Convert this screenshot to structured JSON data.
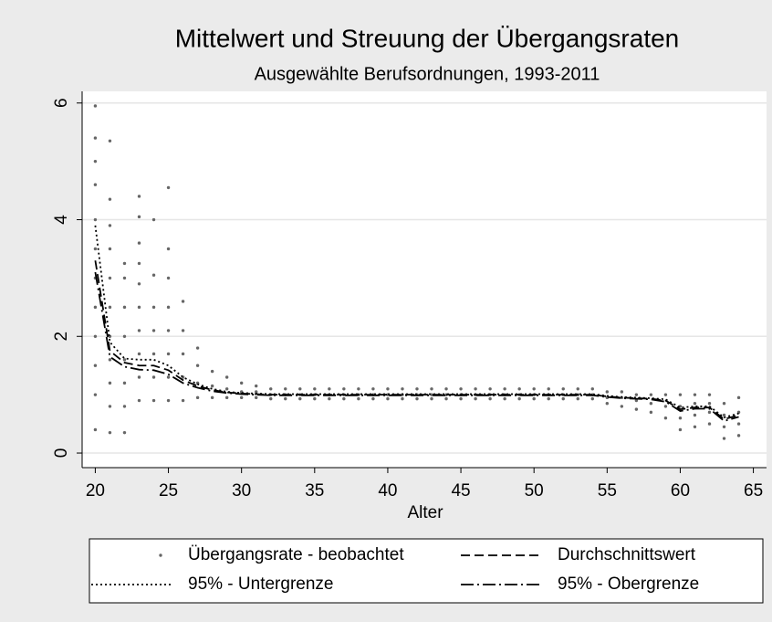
{
  "chart_data": {
    "type": "scatter",
    "title": "Mittelwert und Streuung der Übergangsraten",
    "subtitle": "Ausgewählte Berufsordnungen, 1993-2011",
    "xlabel": "Alter",
    "xlim": [
      19.1,
      65.9
    ],
    "xticks": [
      20,
      25,
      30,
      35,
      40,
      45,
      50,
      55,
      60,
      65
    ],
    "ylim": [
      -0.25,
      6.2
    ],
    "yticks": [
      0,
      2,
      4,
      6
    ],
    "grid": true,
    "series": [
      {
        "name": "Übergangsrate - beobachtet",
        "kind": "points",
        "color": "#666666",
        "x": [
          20,
          20,
          20,
          20,
          20,
          20,
          20,
          20,
          20,
          20,
          20,
          20,
          21,
          21,
          21,
          21,
          21,
          21,
          21,
          21,
          21,
          21,
          21,
          22,
          22,
          22,
          22,
          22,
          22,
          22,
          22,
          23,
          23,
          23,
          23,
          23,
          23,
          23,
          23,
          23,
          23,
          24,
          24,
          24,
          24,
          24,
          24,
          24,
          25,
          25,
          25,
          25,
          25,
          25,
          25,
          25,
          26,
          26,
          26,
          26,
          26,
          27,
          27,
          27,
          27,
          28,
          28,
          28,
          29,
          29,
          29,
          30,
          30,
          30,
          31,
          31,
          31,
          32,
          32,
          32,
          33,
          33,
          33,
          34,
          34,
          34,
          35,
          35,
          35,
          36,
          36,
          36,
          37,
          37,
          37,
          38,
          38,
          38,
          39,
          39,
          39,
          40,
          40,
          40,
          41,
          41,
          41,
          42,
          42,
          42,
          43,
          43,
          43,
          44,
          44,
          44,
          45,
          45,
          45,
          46,
          46,
          46,
          47,
          47,
          47,
          48,
          48,
          48,
          49,
          49,
          49,
          50,
          50,
          50,
          51,
          51,
          51,
          52,
          52,
          52,
          53,
          53,
          53,
          54,
          54,
          54,
          55,
          55,
          55,
          56,
          56,
          56,
          57,
          57,
          57,
          58,
          58,
          58,
          59,
          59,
          59,
          60,
          60,
          60,
          60,
          61,
          61,
          61,
          61,
          62,
          62,
          62,
          62,
          63,
          63,
          63,
          63,
          64,
          64,
          64,
          64
        ],
        "values": [
          0.4,
          1.0,
          1.5,
          2.0,
          2.5,
          3.0,
          3.5,
          4.0,
          4.6,
          5.0,
          5.4,
          5.95,
          0.35,
          0.8,
          1.2,
          1.6,
          2.0,
          2.5,
          3.0,
          3.5,
          3.9,
          4.35,
          5.35,
          0.35,
          0.8,
          1.2,
          1.6,
          2.0,
          2.5,
          3.0,
          3.25,
          0.9,
          1.3,
          1.7,
          2.1,
          2.5,
          2.9,
          3.25,
          3.6,
          4.05,
          4.4,
          0.9,
          1.3,
          1.7,
          2.1,
          2.5,
          3.05,
          4.0,
          0.9,
          1.3,
          1.7,
          2.1,
          2.5,
          3.0,
          3.5,
          4.55,
          0.9,
          1.3,
          1.7,
          2.1,
          2.6,
          0.95,
          1.2,
          1.5,
          1.8,
          0.95,
          1.15,
          1.4,
          0.95,
          1.1,
          1.3,
          0.95,
          1.05,
          1.2,
          0.95,
          1.05,
          1.15,
          0.93,
          1.0,
          1.1,
          0.93,
          1.0,
          1.1,
          0.93,
          1.0,
          1.1,
          0.93,
          1.0,
          1.1,
          0.93,
          1.0,
          1.1,
          0.93,
          1.0,
          1.1,
          0.93,
          1.0,
          1.1,
          0.93,
          1.0,
          1.1,
          0.93,
          1.0,
          1.1,
          0.93,
          1.0,
          1.1,
          0.93,
          1.0,
          1.1,
          0.93,
          1.0,
          1.1,
          0.93,
          1.0,
          1.1,
          0.93,
          1.0,
          1.1,
          0.93,
          1.0,
          1.1,
          0.93,
          1.0,
          1.1,
          0.93,
          1.0,
          1.1,
          0.93,
          1.0,
          1.1,
          0.93,
          1.0,
          1.1,
          0.93,
          1.0,
          1.1,
          0.93,
          1.0,
          1.1,
          0.93,
          1.0,
          1.1,
          0.93,
          1.0,
          1.1,
          0.85,
          0.95,
          1.05,
          0.8,
          0.95,
          1.05,
          0.75,
          0.9,
          1.0,
          0.7,
          0.85,
          1.0,
          0.6,
          0.8,
          1.0,
          0.4,
          0.6,
          0.8,
          1.0,
          0.45,
          0.65,
          0.85,
          1.0,
          0.5,
          0.7,
          0.85,
          1.0,
          0.25,
          0.45,
          0.65,
          0.85,
          0.3,
          0.5,
          0.7,
          0.95
        ]
      },
      {
        "name": "Durchschnittswert",
        "kind": "line",
        "style": "dash",
        "color": "#000000",
        "x": [
          20,
          21,
          22,
          23,
          24,
          25,
          26,
          27,
          28,
          29,
          30,
          31,
          32,
          33,
          34,
          35,
          36,
          37,
          38,
          39,
          40,
          41,
          42,
          43,
          44,
          45,
          46,
          47,
          48,
          49,
          50,
          51,
          52,
          53,
          54,
          55,
          56,
          57,
          58,
          59,
          60,
          61,
          62,
          63,
          64
        ],
        "values": [
          3.3,
          1.75,
          1.55,
          1.5,
          1.5,
          1.42,
          1.25,
          1.15,
          1.08,
          1.04,
          1.02,
          1.01,
          1.0,
          1.0,
          1.0,
          1.0,
          1.0,
          1.0,
          1.0,
          1.0,
          1.0,
          1.0,
          1.0,
          1.0,
          1.0,
          1.0,
          1.0,
          1.0,
          1.0,
          1.0,
          1.0,
          1.0,
          1.0,
          1.0,
          1.0,
          0.97,
          0.95,
          0.94,
          0.93,
          0.9,
          0.75,
          0.78,
          0.78,
          0.58,
          0.65
        ]
      },
      {
        "name": "95% - Untergrenze",
        "kind": "line",
        "style": "dot",
        "color": "#000000",
        "x": [
          20,
          21,
          22,
          23,
          24,
          25,
          26,
          27,
          28,
          29,
          30,
          31,
          32,
          33,
          34,
          35,
          36,
          37,
          38,
          39,
          40,
          41,
          42,
          43,
          44,
          45,
          46,
          47,
          48,
          49,
          50,
          51,
          52,
          53,
          54,
          55,
          56,
          57,
          58,
          59,
          60,
          61,
          62,
          63,
          64
        ],
        "values": [
          3.9,
          1.9,
          1.62,
          1.6,
          1.6,
          1.5,
          1.3,
          1.18,
          1.1,
          1.05,
          1.03,
          1.02,
          1.01,
          1.01,
          1.01,
          1.01,
          1.01,
          1.01,
          1.01,
          1.01,
          1.01,
          1.01,
          1.01,
          1.01,
          1.01,
          1.01,
          1.01,
          1.01,
          1.01,
          1.01,
          1.01,
          1.01,
          1.01,
          1.01,
          1.01,
          0.98,
          0.96,
          0.95,
          0.94,
          0.92,
          0.78,
          0.8,
          0.8,
          0.61,
          0.68
        ]
      },
      {
        "name": "95% - Obergrenze",
        "kind": "line",
        "style": "dashdot",
        "color": "#000000",
        "x": [
          20,
          21,
          22,
          23,
          24,
          25,
          26,
          27,
          28,
          29,
          30,
          31,
          32,
          33,
          34,
          35,
          36,
          37,
          38,
          39,
          40,
          41,
          42,
          43,
          44,
          45,
          46,
          47,
          48,
          49,
          50,
          51,
          52,
          53,
          54,
          55,
          56,
          57,
          58,
          59,
          60,
          61,
          62,
          63,
          64
        ],
        "values": [
          3.1,
          1.65,
          1.48,
          1.43,
          1.42,
          1.35,
          1.2,
          1.12,
          1.06,
          1.03,
          1.01,
          1.0,
          0.99,
          0.99,
          0.99,
          0.99,
          0.99,
          0.99,
          0.99,
          0.99,
          0.99,
          0.99,
          0.99,
          0.99,
          0.99,
          0.99,
          0.99,
          0.99,
          0.99,
          0.99,
          0.99,
          0.99,
          0.99,
          0.99,
          0.99,
          0.96,
          0.94,
          0.93,
          0.92,
          0.88,
          0.72,
          0.76,
          0.76,
          0.55,
          0.62
        ]
      }
    ]
  }
}
